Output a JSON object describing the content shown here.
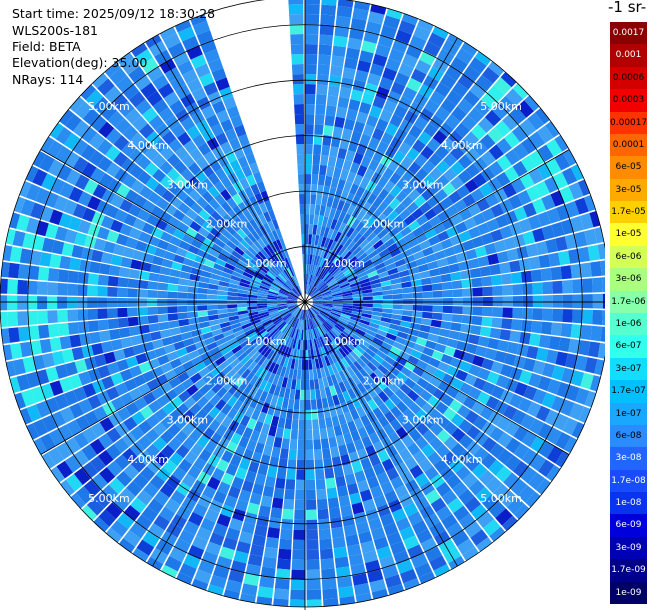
{
  "info": {
    "start_time": "Start time: 2025/09/12 18:30:28",
    "instrument": "WLS200s-181",
    "field": "Field: BETA",
    "elevation": "Elevation(deg): 35.00",
    "nrays": "NRays: 114"
  },
  "colorbar": {
    "title": "-1 sr-",
    "labels": [
      "0.0017",
      "0.001",
      "0.0006",
      "0.0003",
      "0.00017",
      "0.0001",
      "6e-05",
      "3e-05",
      "1.7e-05",
      "1e-05",
      "6e-06",
      "3e-06",
      "1.7e-06",
      "1e-06",
      "6e-07",
      "3e-07",
      "1.7e-07",
      "1e-07",
      "6e-08",
      "3e-08",
      "1.7e-08",
      "1e-08",
      "6e-09",
      "3e-09",
      "1.7e-09",
      "1e-09"
    ],
    "colors": [
      "#8b0000",
      "#b00000",
      "#d40000",
      "#f20000",
      "#ff3300",
      "#ff6600",
      "#ff8c00",
      "#ffaa00",
      "#ffd000",
      "#ffff33",
      "#d4ff55",
      "#aaff7f",
      "#88ffaa",
      "#55ffd0",
      "#33ffee",
      "#11ddff",
      "#00c0ff",
      "#1aa8ff",
      "#2b8cff",
      "#2266ff",
      "#1a4cff",
      "#0a33ee",
      "#0000dd",
      "#0000b4",
      "#00008b",
      "#000066"
    ],
    "text_light": [
      true,
      true,
      false,
      false,
      false,
      false,
      false,
      false,
      false,
      false,
      false,
      false,
      false,
      false,
      false,
      false,
      false,
      false,
      false,
      true,
      true,
      true,
      true,
      true,
      true,
      true
    ]
  },
  "chart_data": {
    "type": "heatmap",
    "projection": "polar-ppi",
    "field": "BETA",
    "elevation_deg": 35.0,
    "n_rays": 114,
    "max_range_km": 5.5,
    "range_rings_km": [
      1,
      2,
      3,
      4,
      5
    ],
    "range_ring_labels": [
      "1.00km",
      "2.00km",
      "3.00km",
      "4.00km",
      "5.00km"
    ],
    "azimuth_gridlines_deg": [
      0,
      30,
      60,
      90,
      120,
      150,
      180,
      210,
      240,
      270,
      300,
      330
    ],
    "missing_sector_deg": [
      340,
      357
    ],
    "dominant_value_range": [
      "3e-08",
      "1e-07"
    ],
    "colorscale": "log"
  }
}
